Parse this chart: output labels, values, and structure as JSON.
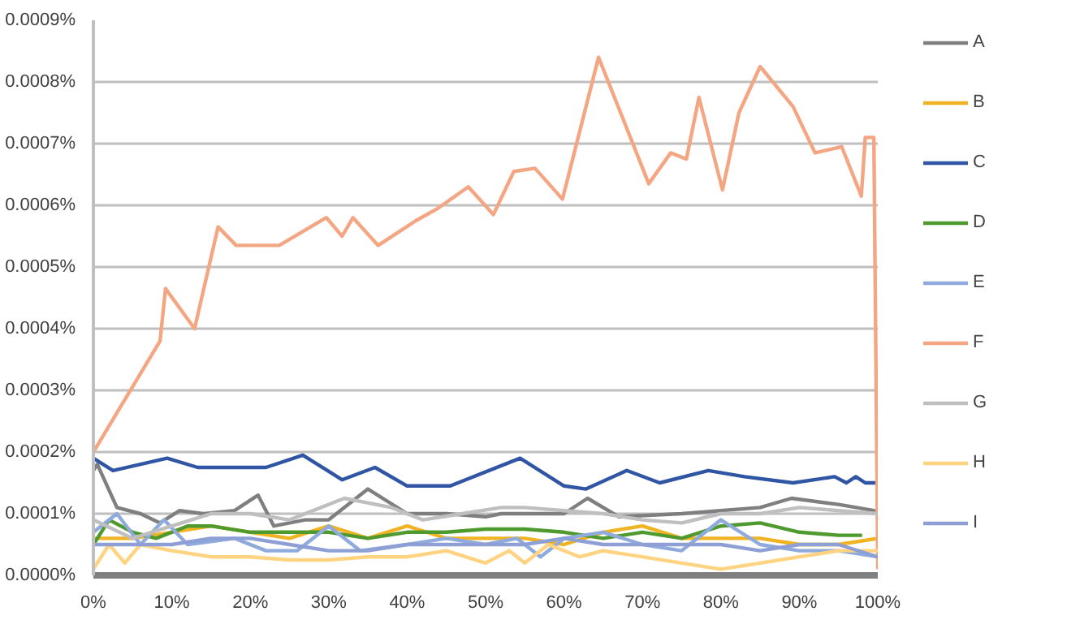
{
  "chart_data": {
    "type": "line",
    "xlim": [
      0,
      100
    ],
    "ylim": [
      0,
      0.0009
    ],
    "xticks": [
      {
        "value": 0,
        "label": "0%"
      },
      {
        "value": 10,
        "label": "10%"
      },
      {
        "value": 20,
        "label": "20%"
      },
      {
        "value": 30,
        "label": "30%"
      },
      {
        "value": 40,
        "label": "40%"
      },
      {
        "value": 50,
        "label": "50%"
      },
      {
        "value": 60,
        "label": "60%"
      },
      {
        "value": 70,
        "label": "70%"
      },
      {
        "value": 80,
        "label": "80%"
      },
      {
        "value": 90,
        "label": "90%"
      },
      {
        "value": 100,
        "label": "100%"
      }
    ],
    "yticks": [
      {
        "value": 0,
        "label": "0.0000%"
      },
      {
        "value": 0.0001,
        "label": "0.0001%"
      },
      {
        "value": 0.0002,
        "label": "0.0002%"
      },
      {
        "value": 0.0003,
        "label": "0.0003%"
      },
      {
        "value": 0.0004,
        "label": "0.0004%"
      },
      {
        "value": 0.0005,
        "label": "0.0005%"
      },
      {
        "value": 0.0006,
        "label": "0.0006%"
      },
      {
        "value": 0.0007,
        "label": "0.0007%"
      },
      {
        "value": 0.0008,
        "label": "0.0008%"
      },
      {
        "value": 0.0009,
        "label": "0.0009%"
      }
    ],
    "grid": "y",
    "legend": "right",
    "line_style": "solid",
    "series": [
      {
        "name": "A",
        "color": "#7f7f7f",
        "x": [
          0,
          0.5,
          3,
          6,
          8.5,
          11,
          14,
          18,
          21,
          23,
          27,
          30,
          35,
          40,
          45,
          50,
          52,
          60,
          63,
          67,
          75,
          85,
          89,
          95,
          99.5,
          100
        ],
        "values": [
          0.00017,
          0.00018,
          0.00011,
          0.0001,
          8.5e-05,
          0.000105,
          0.0001,
          0.000105,
          0.00013,
          8e-05,
          9e-05,
          9e-05,
          0.00014,
          0.0001,
          0.0001,
          9.5e-05,
          0.0001,
          0.0001,
          0.000125,
          9.5e-05,
          0.0001,
          0.00011,
          0.000125,
          0.000115,
          0.000105,
          0.0001
        ]
      },
      {
        "name": "B",
        "color": "#f0b323",
        "x": [
          0,
          5,
          10,
          15,
          20,
          25,
          30,
          35,
          40,
          45,
          50,
          55,
          60,
          65,
          70,
          75,
          80,
          85,
          90,
          95,
          100
        ],
        "values": [
          6e-05,
          6e-05,
          7e-05,
          8e-05,
          7e-05,
          6e-05,
          8e-05,
          6e-05,
          8e-05,
          6e-05,
          6e-05,
          6e-05,
          5e-05,
          7e-05,
          8e-05,
          6e-05,
          6e-05,
          6e-05,
          5e-05,
          5e-05,
          6e-05
        ]
      },
      {
        "name": "C",
        "color": "#2f55a4",
        "x": [
          0,
          2.5,
          9.4,
          13.3,
          22,
          26.7,
          31.7,
          35.9,
          40,
          42.3,
          45.5,
          54.4,
          60,
          62.8,
          68,
          72.2,
          78.4,
          83,
          89.2,
          94.5,
          96,
          97.2,
          98.4,
          100
        ],
        "values": [
          0.00019,
          0.00017,
          0.00019,
          0.000175,
          0.000175,
          0.000195,
          0.000155,
          0.000175,
          0.000145,
          0.000145,
          0.000145,
          0.00019,
          0.000145,
          0.00014,
          0.00017,
          0.00015,
          0.00017,
          0.00016,
          0.00015,
          0.00016,
          0.00015,
          0.00016,
          0.00015,
          0.00015
        ]
      },
      {
        "name": "D",
        "color": "#4f9a2e",
        "x": [
          0,
          2,
          5,
          8,
          12,
          15,
          20,
          25,
          30,
          35,
          40,
          45,
          50,
          55,
          60,
          65,
          70,
          75,
          80,
          85,
          90,
          95,
          98
        ],
        "values": [
          5e-05,
          9e-05,
          7e-05,
          6e-05,
          8e-05,
          8e-05,
          7e-05,
          7e-05,
          7e-05,
          6e-05,
          7e-05,
          7e-05,
          7.5e-05,
          7.5e-05,
          7e-05,
          6e-05,
          7e-05,
          6e-05,
          8e-05,
          8.5e-05,
          7e-05,
          6.5e-05,
          6.5e-05
        ]
      },
      {
        "name": "E",
        "color": "#8faadc",
        "x": [
          0,
          3,
          6,
          9,
          12,
          18,
          22,
          26,
          30,
          34,
          40,
          45,
          50,
          54,
          57,
          60,
          65,
          70,
          75,
          80,
          85,
          90,
          95,
          100
        ],
        "values": [
          7e-05,
          0.0001,
          5e-05,
          9e-05,
          5e-05,
          6e-05,
          4e-05,
          4e-05,
          8e-05,
          4e-05,
          5e-05,
          6e-05,
          5e-05,
          6e-05,
          3e-05,
          6e-05,
          7e-05,
          5e-05,
          4e-05,
          9e-05,
          5e-05,
          4e-05,
          4e-05,
          3e-05
        ]
      },
      {
        "name": "F",
        "color": "#f4a582",
        "x": [
          0,
          8.5,
          9.2,
          12.9,
          15.9,
          18.2,
          23.7,
          29.7,
          31.7,
          33.1,
          36.3,
          41.1,
          43.9,
          47.8,
          51,
          53.6,
          56.3,
          59.8,
          64.4,
          70.8,
          73.6,
          75.6,
          77.2,
          80.2,
          82.3,
          85,
          89.2,
          92,
          95.4,
          97.9,
          98.4,
          99.5,
          100
        ],
        "values": [
          0.0002,
          0.00038,
          0.000465,
          0.0004,
          0.000565,
          0.000535,
          0.000535,
          0.00058,
          0.00055,
          0.00058,
          0.000535,
          0.000575,
          0.000595,
          0.00063,
          0.000585,
          0.000655,
          0.00066,
          0.00061,
          0.00084,
          0.000635,
          0.000685,
          0.000675,
          0.000775,
          0.000625,
          0.00075,
          0.000825,
          0.00076,
          0.000685,
          0.000695,
          0.000615,
          0.00071,
          0.00071,
          1e-05
        ]
      },
      {
        "name": "G",
        "color": "#bfbfbf",
        "x": [
          0,
          5,
          10,
          15,
          20,
          25,
          32,
          38,
          42,
          47,
          52,
          55,
          60,
          65,
          70,
          75,
          80,
          85,
          90,
          95,
          100
        ],
        "values": [
          9e-05,
          6e-05,
          8e-05,
          0.0001,
          0.0001,
          9e-05,
          0.000125,
          0.00011,
          9e-05,
          0.0001,
          0.00011,
          0.00011,
          0.000105,
          0.0001,
          9e-05,
          8.5e-05,
          0.0001,
          0.0001,
          0.00011,
          0.000105,
          0.0001
        ]
      },
      {
        "name": "H",
        "color": "#ffd37f",
        "x": [
          0,
          2,
          4,
          6,
          10,
          15,
          20,
          25,
          30,
          35,
          40,
          45,
          50,
          53,
          55,
          58,
          62,
          65,
          70,
          75,
          80,
          85,
          90,
          95,
          100
        ],
        "values": [
          1e-05,
          5e-05,
          2e-05,
          5e-05,
          4e-05,
          3e-05,
          3e-05,
          2.5e-05,
          2.5e-05,
          3e-05,
          3e-05,
          4e-05,
          2e-05,
          4e-05,
          2e-05,
          5e-05,
          3e-05,
          4e-05,
          3e-05,
          2e-05,
          1e-05,
          2e-05,
          3e-05,
          4e-05,
          4e-05
        ]
      },
      {
        "name": "I",
        "color": "#8e9fd6",
        "x": [
          0,
          5,
          10,
          15,
          20,
          25,
          30,
          35,
          40,
          45,
          50,
          55,
          60,
          65,
          70,
          75,
          80,
          85,
          90,
          95,
          100
        ],
        "values": [
          5e-05,
          5e-05,
          5e-05,
          6e-05,
          6e-05,
          5e-05,
          4e-05,
          4e-05,
          5e-05,
          5e-05,
          5e-05,
          5e-05,
          6e-05,
          5e-05,
          5e-05,
          5e-05,
          5e-05,
          4e-05,
          5e-05,
          5e-05,
          3e-05
        ]
      }
    ]
  }
}
